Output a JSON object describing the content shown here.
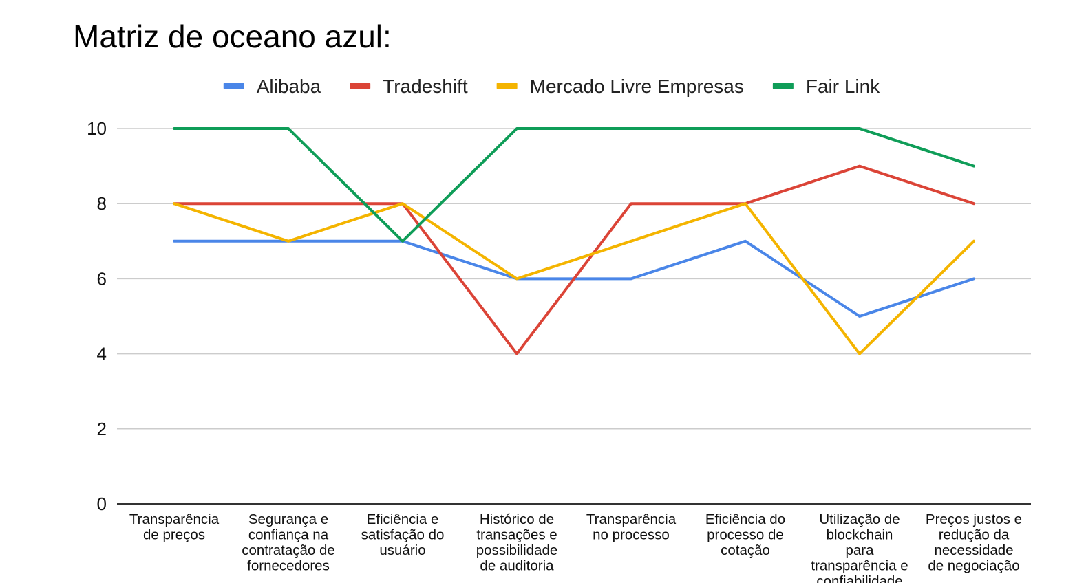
{
  "chart_data": {
    "type": "line",
    "title": "Matriz de oceano azul:",
    "xlabel": "",
    "ylabel": "",
    "ylim": [
      0,
      10
    ],
    "yticks": [
      "0",
      "2",
      "4",
      "6",
      "8",
      "10"
    ],
    "grid": true,
    "legend_position": "top",
    "categories": [
      [
        "Transparência",
        "de preços"
      ],
      [
        "Segurança e",
        "confiança na",
        "contratação de",
        "fornecedores"
      ],
      [
        "Eficiência e",
        "satisfação do",
        "usuário"
      ],
      [
        "Histórico de",
        "transações e",
        "possibilidade",
        "de auditoria"
      ],
      [
        "Transparência",
        "no processo"
      ],
      [
        "Eficiência do",
        "processo de",
        "cotação"
      ],
      [
        "Utilização de",
        "blockchain",
        "para",
        "transparência e",
        "confiabilidade"
      ],
      [
        "Preços justos e",
        "redução da",
        "necessidade",
        "de negociação"
      ]
    ],
    "series": [
      {
        "name": "Alibaba",
        "color": "#4a86e8",
        "values": [
          7,
          7,
          7,
          6,
          6,
          7,
          5,
          6
        ]
      },
      {
        "name": "Tradeshift",
        "color": "#db4437",
        "values": [
          8,
          8,
          8,
          4,
          8,
          8,
          9,
          8
        ]
      },
      {
        "name": "Mercado Livre Empresas",
        "color": "#f4b400",
        "values": [
          8,
          7,
          8,
          6,
          7,
          8,
          4,
          7
        ]
      },
      {
        "name": "Fair Link",
        "color": "#0f9d58",
        "values": [
          10,
          10,
          7,
          10,
          10,
          10,
          10,
          9
        ]
      }
    ]
  }
}
